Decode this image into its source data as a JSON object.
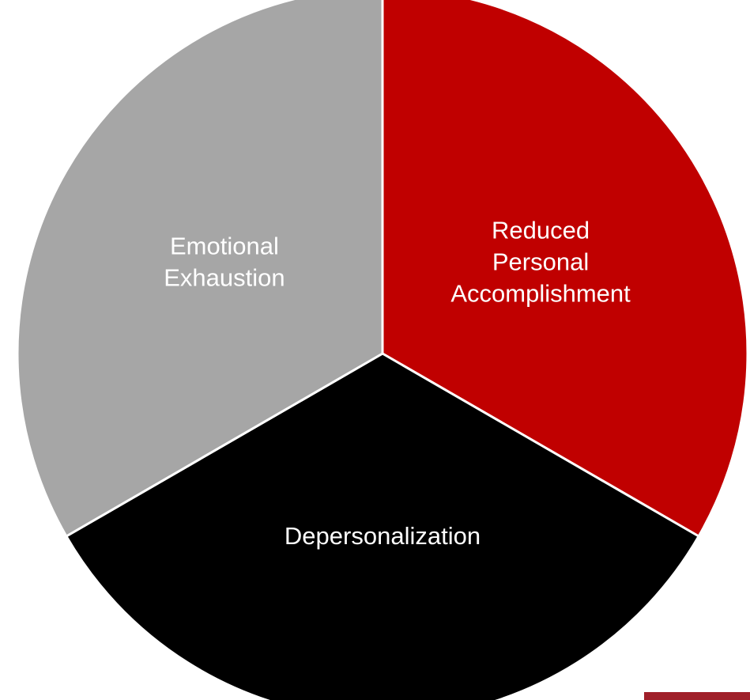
{
  "chart_data": {
    "type": "pie",
    "categories": [
      "Reduced Personal Accomplishment",
      "Depersonalization",
      "Emotional Exhaustion"
    ],
    "values": [
      33.3,
      33.3,
      33.3
    ],
    "colors": [
      "#c00000",
      "#000000",
      "#a6a6a6"
    ]
  }
}
